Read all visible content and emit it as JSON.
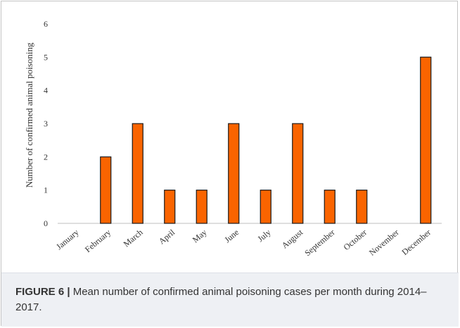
{
  "chart_data": {
    "type": "bar",
    "title": "",
    "xlabel": "",
    "ylabel": "Number of confirmed animal poisoning",
    "ylim": [
      0,
      6
    ],
    "yticks": [
      0,
      1,
      2,
      3,
      4,
      5,
      6
    ],
    "categories": [
      "January",
      "February",
      "March",
      "April",
      "May",
      "June",
      "July",
      "August",
      "September",
      "October",
      "November",
      "December"
    ],
    "values": [
      0,
      2,
      3,
      1,
      1,
      3,
      1,
      3,
      1,
      1,
      0,
      5
    ],
    "grid": false,
    "legend": "none",
    "colors": {
      "bar_fill": "#fa6400",
      "bar_stroke": "#1a1a1a",
      "axis": "#bfbfbf"
    }
  },
  "caption": {
    "label": "FIGURE 6 |",
    "text": " Mean number of confirmed animal poisoning cases per month during 2014–2017."
  }
}
